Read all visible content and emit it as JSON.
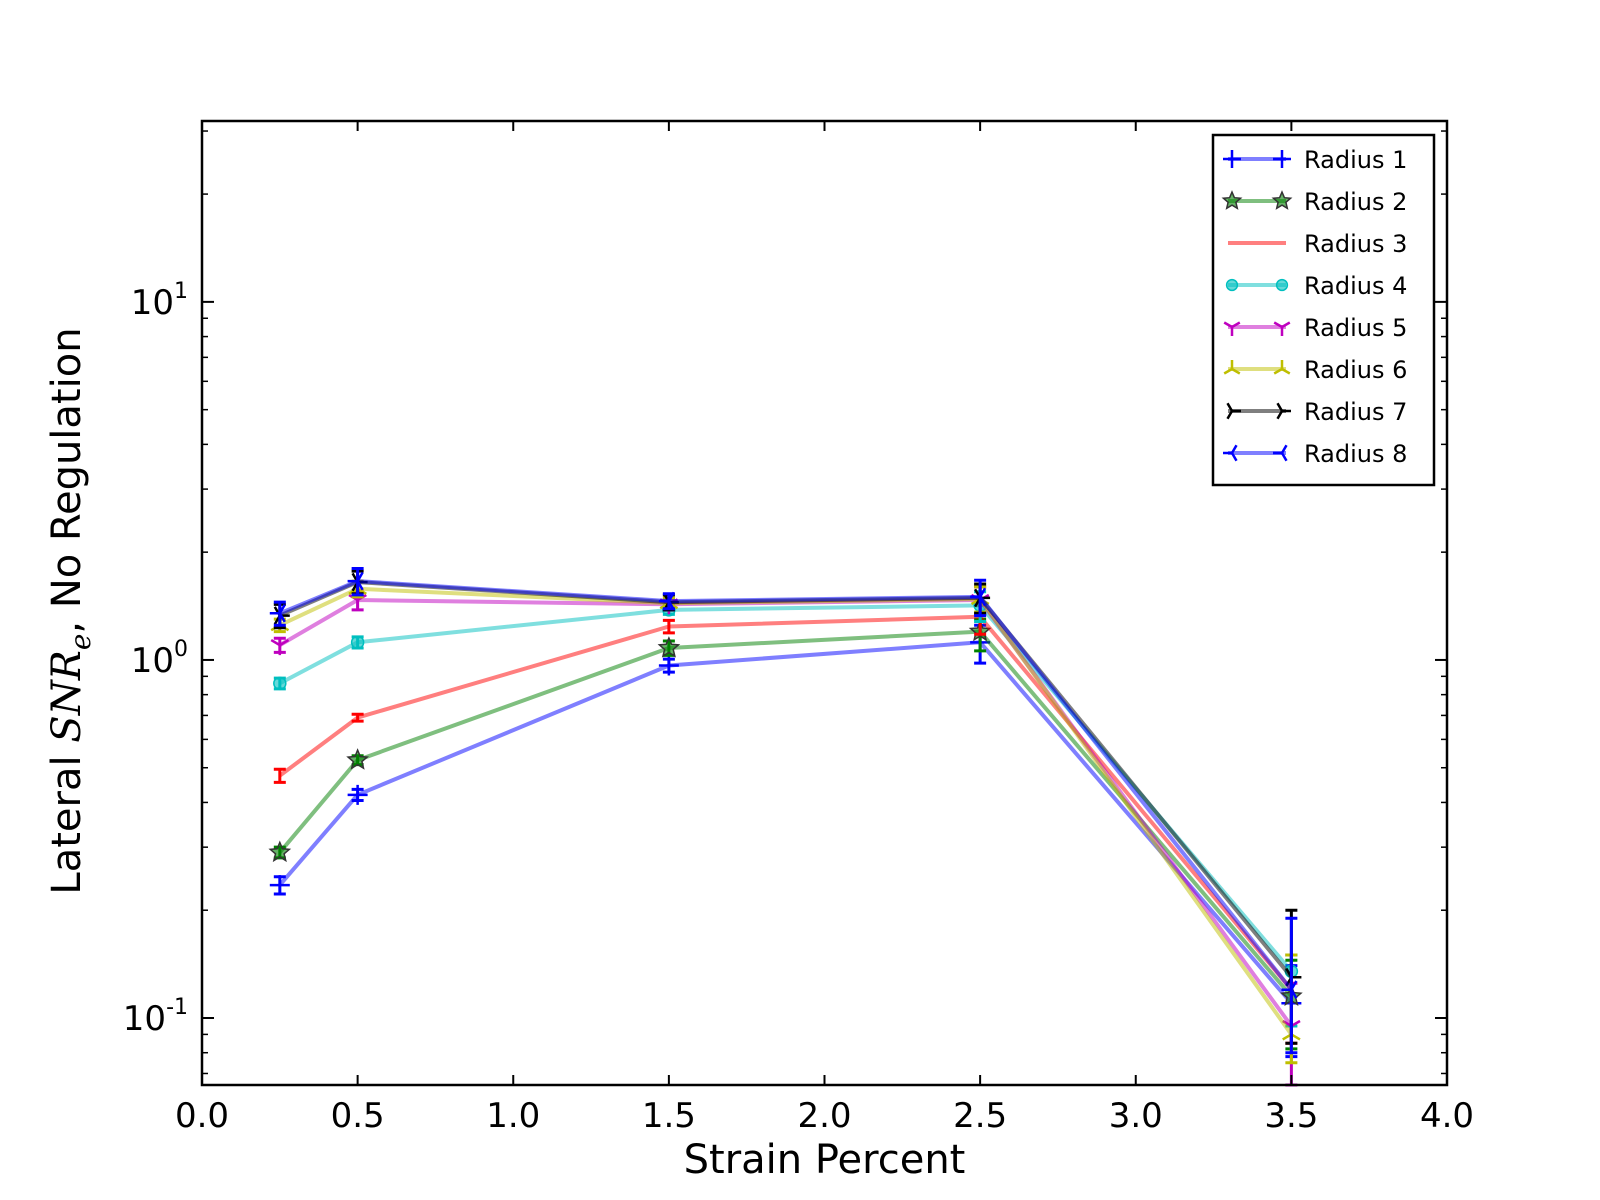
{
  "chart_data": {
    "type": "line",
    "xlabel": "Strain Percent",
    "ylabel": {
      "prefix": "Lateral ",
      "math_base": "SNR",
      "math_sub": "e",
      "suffix": ", No Regulation"
    },
    "x_scale": "linear",
    "y_scale": "log",
    "xlim": [
      0.0,
      4.0
    ],
    "ylim": [
      0.065,
      32
    ],
    "x_ticks": [
      0.0,
      0.5,
      1.0,
      1.5,
      2.0,
      2.5,
      3.0,
      3.5,
      4.0
    ],
    "x_tick_labels": [
      "0.0",
      "0.5",
      "1.0",
      "1.5",
      "2.0",
      "2.5",
      "3.0",
      "3.5",
      "4.0"
    ],
    "y_major_ticks": [
      {
        "value": 0.1,
        "base": "10",
        "exp": "-1"
      },
      {
        "value": 1,
        "base": "10",
        "exp": "0"
      },
      {
        "value": 10,
        "base": "10",
        "exp": "1"
      }
    ],
    "grid": false,
    "legend_position": "top-right",
    "x": [
      0.25,
      0.5,
      1.5,
      2.5,
      3.5
    ],
    "series": [
      {
        "name": "Radius 1",
        "color": "#0000ff",
        "marker": "plus",
        "values": [
          0.235,
          0.42,
          0.965,
          1.12,
          0.11
        ],
        "err": [
          [
            0.222,
            0.248
          ],
          [
            0.405,
            0.435
          ],
          [
            0.925,
            1.005
          ],
          [
            0.98,
            1.25
          ],
          [
            0.078,
            0.14
          ]
        ]
      },
      {
        "name": "Radius 2",
        "color": "#008000",
        "marker": "star",
        "values": [
          0.29,
          0.525,
          1.08,
          1.2,
          0.115
        ],
        "err": [
          [
            0.28,
            0.3
          ],
          [
            0.51,
            0.54
          ],
          [
            1.03,
            1.13
          ],
          [
            1.06,
            1.3
          ],
          [
            0.082,
            0.145
          ]
        ]
      },
      {
        "name": "Radius 3",
        "color": "#ff0000",
        "marker": "none",
        "values": [
          0.475,
          0.69,
          1.24,
          1.32,
          0.12
        ],
        "err": [
          [
            0.455,
            0.495
          ],
          [
            0.675,
            0.705
          ],
          [
            1.19,
            1.29
          ],
          [
            1.18,
            1.42
          ],
          [
            0.085,
            0.15
          ]
        ]
      },
      {
        "name": "Radius 4",
        "color": "#00bfbf",
        "marker": "circle",
        "values": [
          0.86,
          1.12,
          1.38,
          1.42,
          0.135
        ],
        "err": [
          [
            0.83,
            0.89
          ],
          [
            1.08,
            1.16
          ],
          [
            1.34,
            1.42
          ],
          [
            1.28,
            1.55
          ],
          [
            0.095,
            0.15
          ]
        ]
      },
      {
        "name": "Radius 5",
        "color": "#bf00bf",
        "marker": "tri_down",
        "values": [
          1.1,
          1.47,
          1.43,
          1.47,
          0.095
        ],
        "err": [
          [
            1.05,
            1.15
          ],
          [
            1.38,
            1.56
          ],
          [
            1.38,
            1.48
          ],
          [
            1.34,
            1.6
          ],
          [
            0.065,
            0.125
          ]
        ]
      },
      {
        "name": "Radius 6",
        "color": "#bfbf00",
        "marker": "tri_up",
        "values": [
          1.25,
          1.58,
          1.44,
          1.48,
          0.09
        ],
        "err": [
          [
            1.2,
            1.3
          ],
          [
            1.5,
            1.66
          ],
          [
            1.39,
            1.49
          ],
          [
            1.36,
            1.6
          ],
          [
            0.075,
            0.15
          ]
        ]
      },
      {
        "name": "Radius 7",
        "color": "#000000",
        "marker": "tri_right",
        "values": [
          1.33,
          1.65,
          1.45,
          1.49,
          0.13
        ],
        "err": [
          [
            1.23,
            1.43
          ],
          [
            1.53,
            1.77
          ],
          [
            1.38,
            1.52
          ],
          [
            1.35,
            1.63
          ],
          [
            0.085,
            0.2
          ]
        ]
      },
      {
        "name": "Radius 8",
        "color": "#0000ff",
        "marker": "tri_left",
        "values": [
          1.35,
          1.66,
          1.46,
          1.5,
          0.12
        ],
        "err": [
          [
            1.25,
            1.45
          ],
          [
            1.52,
            1.8
          ],
          [
            1.39,
            1.53
          ],
          [
            1.33,
            1.67
          ],
          [
            0.08,
            0.19
          ]
        ]
      }
    ]
  }
}
